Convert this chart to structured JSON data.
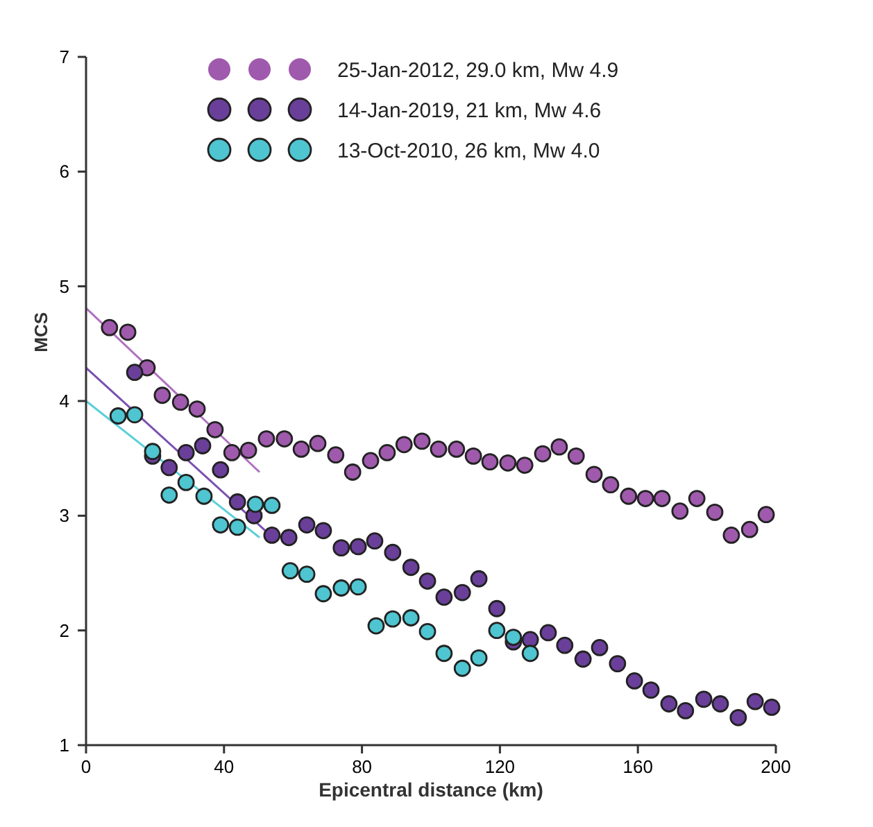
{
  "chart_data": {
    "type": "scatter",
    "xlabel": "Epicentral distance (km)",
    "ylabel": "MCS",
    "xlim": [
      0,
      200
    ],
    "ylim": [
      1,
      7
    ],
    "xticks": [
      0,
      40,
      80,
      120,
      160,
      200
    ],
    "yticks": [
      1,
      2,
      3,
      4,
      5,
      6,
      7
    ],
    "legend": "top",
    "marker": "circle",
    "grid": false,
    "series": [
      {
        "name": "25-Jan-2012, 29.0 km, Mw 4.9",
        "color": "#a05aad",
        "x": [
          6.8,
          12.1,
          17.7,
          22.1,
          27.4,
          32.2,
          37.4,
          42.3,
          47.1,
          52.3,
          57.5,
          62.4,
          67.2,
          72.4,
          77.3,
          82.5,
          87.3,
          92.2,
          97.4,
          102.2,
          107.4,
          112.3,
          117.1,
          122.3,
          127.2,
          132.4,
          137.2,
          142.1,
          147.3,
          152.1,
          157.3,
          162.2,
          167,
          172.2,
          177.1,
          182.3,
          187.1,
          192.4,
          197.2
        ],
        "values": [
          4.64,
          4.6,
          4.29,
          4.05,
          3.99,
          3.93,
          3.75,
          3.55,
          3.57,
          3.67,
          3.67,
          3.58,
          3.63,
          3.53,
          3.38,
          3.48,
          3.55,
          3.62,
          3.65,
          3.58,
          3.58,
          3.52,
          3.47,
          3.46,
          3.44,
          3.54,
          3.6,
          3.52,
          3.36,
          3.27,
          3.17,
          3.15,
          3.15,
          3.04,
          3.15,
          3.03,
          2.83,
          2.88,
          3.01
        ]
      },
      {
        "name": "14-Jan-2019, 21 km, Mw 4.6",
        "color": "#6a3f9a",
        "x": [
          14.1,
          19.3,
          24.1,
          29,
          33.8,
          39,
          43.9,
          48.7,
          53.9,
          58.8,
          64,
          68.8,
          74,
          78.9,
          83.7,
          88.9,
          94.2,
          99,
          103.8,
          109.1,
          113.9,
          119.1,
          123.9,
          128.8,
          134,
          138.8,
          144.1,
          148.9,
          154.1,
          159,
          163.8,
          169,
          173.8,
          179.1,
          183.9,
          189.1,
          194,
          198.8
        ],
        "values": [
          4.25,
          3.52,
          3.42,
          3.55,
          3.61,
          3.4,
          3.12,
          3,
          2.83,
          2.81,
          2.92,
          2.87,
          2.72,
          2.73,
          2.78,
          2.68,
          2.55,
          2.43,
          2.29,
          2.33,
          2.45,
          2.19,
          1.9,
          1.92,
          1.98,
          1.87,
          1.75,
          1.85,
          1.71,
          1.56,
          1.48,
          1.36,
          1.3,
          1.4,
          1.36,
          1.24,
          1.38,
          1.33
        ]
      },
      {
        "name": "13-Oct-2010, 26 km, Mw 4.0",
        "color": "#4ec5d0",
        "x": [
          9.3,
          14.1,
          19.3,
          24.1,
          29,
          34.2,
          39,
          43.9,
          49.1,
          53.9,
          59.2,
          64,
          68.8,
          74,
          78.9,
          84.1,
          88.9,
          94.2,
          99,
          103.8,
          109.1,
          113.9,
          119.1,
          123.9,
          128.8
        ],
        "values": [
          3.87,
          3.88,
          3.56,
          3.18,
          3.29,
          3.17,
          2.92,
          2.9,
          3.1,
          3.09,
          2.52,
          2.49,
          2.32,
          2.37,
          2.38,
          2.04,
          2.1,
          2.11,
          1.99,
          1.8,
          1.67,
          1.76,
          2,
          1.94,
          1.8
        ]
      },
      {
        "type": "line",
        "marker": "none",
        "color": "#b070c0",
        "x": [
          0,
          50.3
        ],
        "values": [
          4.81,
          3.38
        ]
      },
      {
        "type": "line",
        "marker": "none",
        "color": "#7a50b0",
        "x": [
          0,
          52.7
        ],
        "values": [
          4.29,
          2.85
        ]
      },
      {
        "type": "line",
        "marker": "none",
        "color": "#5ccfd8",
        "x": [
          0,
          50.3
        ],
        "values": [
          4,
          2.81
        ]
      }
    ]
  }
}
